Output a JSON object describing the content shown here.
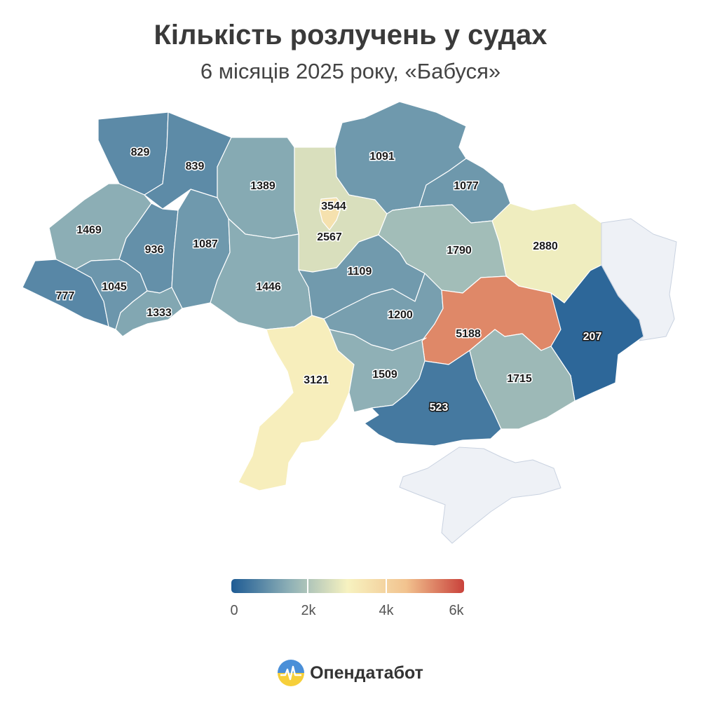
{
  "title": "Кількість розлучень у судах",
  "subtitle": "6 місяців 2025 року, «Бабуся»",
  "map": {
    "color_scale": [
      "#1e5b94",
      "#8eb0b6",
      "#f7f2c0",
      "#f2c38f",
      "#c9423b"
    ],
    "no_data_color": "#eef1f6",
    "regions": [
      {
        "id": "volyn",
        "value": 829
      },
      {
        "id": "rivne",
        "value": 839
      },
      {
        "id": "zhytomyr",
        "value": 1389
      },
      {
        "id": "kyiv-oblast",
        "value": 2567
      },
      {
        "id": "kyiv-city",
        "value": 3544
      },
      {
        "id": "chernihiv",
        "value": 1091
      },
      {
        "id": "sumy",
        "value": 1077
      },
      {
        "id": "kharkiv",
        "value": 2880
      },
      {
        "id": "poltava",
        "value": 1790
      },
      {
        "id": "lviv",
        "value": 1469
      },
      {
        "id": "ternopil",
        "value": 936
      },
      {
        "id": "khmelnytskyi",
        "value": 1087
      },
      {
        "id": "vinnytsia",
        "value": 1446
      },
      {
        "id": "cherkasy",
        "value": 1109
      },
      {
        "id": "zakarpattia",
        "value": 777
      },
      {
        "id": "ivano-frankivsk",
        "value": 1045
      },
      {
        "id": "chernivtsi",
        "value": 1333
      },
      {
        "id": "kirovohrad",
        "value": 1200
      },
      {
        "id": "dnipropetrovsk",
        "value": 5188
      },
      {
        "id": "donetsk",
        "value": 207
      },
      {
        "id": "odesa",
        "value": 3121
      },
      {
        "id": "mykolaiv",
        "value": 1509
      },
      {
        "id": "kherson",
        "value": 523
      },
      {
        "id": "zaporizhzhia",
        "value": 1715
      },
      {
        "id": "luhansk",
        "value": null
      },
      {
        "id": "crimea",
        "value": null
      }
    ]
  },
  "legend": {
    "min": 0,
    "max": 6000,
    "tick_labels": [
      "0",
      "2k",
      "4k",
      "6k"
    ]
  },
  "brand": {
    "name": "Опендатабот",
    "logo_icon": "opendatabot-logo-icon"
  }
}
